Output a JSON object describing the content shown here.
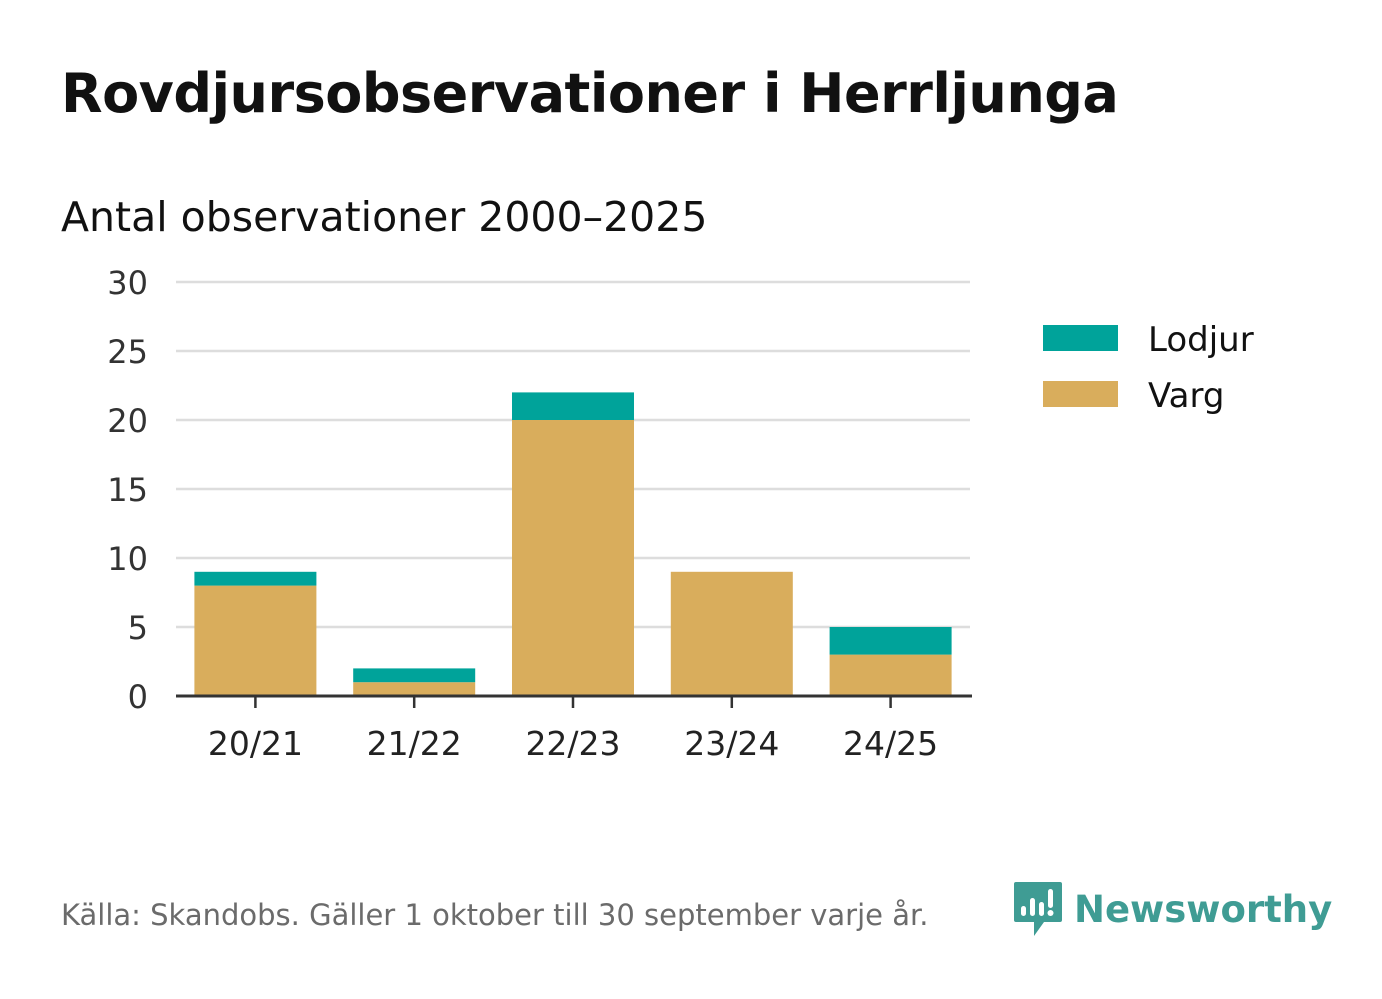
{
  "title": "Rovdjursobservationer i Herrljunga",
  "subtitle": "Antal observationer 2000–2025",
  "source": "Källa: Skandobs. Gäller 1 oktober till 30 september varje år.",
  "brand": {
    "name": "Newsworthy",
    "color": "#3f9c94",
    "icon": "newsworthy-logo-icon"
  },
  "chart_data": {
    "type": "bar",
    "stacked": true,
    "categories": [
      "20/21",
      "21/22",
      "22/23",
      "23/24",
      "24/25"
    ],
    "series": [
      {
        "name": "Varg",
        "color": "#d9ad5c",
        "values": [
          8,
          1,
          20,
          9,
          3
        ]
      },
      {
        "name": "Lodjur",
        "color": "#00a39a",
        "values": [
          1,
          1,
          2,
          0,
          2
        ]
      }
    ],
    "legend": [
      {
        "name": "Lodjur",
        "color": "#00a39a"
      },
      {
        "name": "Varg",
        "color": "#d9ad5c"
      }
    ],
    "y_ticks": [
      "0",
      "5",
      "10",
      "15",
      "20",
      "25",
      "30"
    ],
    "ylim": [
      0,
      30
    ],
    "grid": true,
    "legend_position": "right"
  }
}
